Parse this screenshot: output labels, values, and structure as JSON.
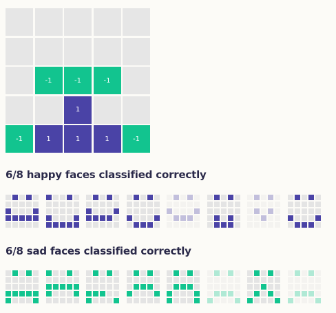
{
  "kernel": {
    "rows": [
      [
        "",
        "",
        "",
        "",
        ""
      ],
      [
        "",
        "",
        "",
        "",
        ""
      ],
      [
        "",
        "-1",
        "-1",
        "-1",
        ""
      ],
      [
        "",
        "",
        "1",
        "",
        ""
      ],
      [
        "-1",
        "1",
        "1",
        "1",
        "-1"
      ]
    ]
  },
  "happy": {
    "title": "6/8 happy faces classified correctly",
    "color": "#4a43a6",
    "faces": [
      {
        "correct": true,
        "grid": [
          [
            0,
            1,
            0,
            1,
            0
          ],
          [
            0,
            0,
            0,
            0,
            0
          ],
          [
            1,
            0,
            0,
            0,
            1
          ],
          [
            1,
            1,
            1,
            1,
            1
          ],
          [
            0,
            0,
            0,
            0,
            0
          ]
        ]
      },
      {
        "correct": true,
        "grid": [
          [
            1,
            0,
            0,
            1,
            0
          ],
          [
            0,
            0,
            0,
            0,
            0
          ],
          [
            0,
            0,
            0,
            0,
            0
          ],
          [
            1,
            0,
            0,
            0,
            1
          ],
          [
            1,
            1,
            1,
            1,
            1
          ]
        ]
      },
      {
        "correct": true,
        "grid": [
          [
            0,
            1,
            0,
            1,
            0
          ],
          [
            0,
            0,
            0,
            0,
            0
          ],
          [
            1,
            0,
            0,
            0,
            1
          ],
          [
            1,
            1,
            1,
            1,
            0
          ],
          [
            0,
            0,
            0,
            0,
            0
          ]
        ]
      },
      {
        "correct": true,
        "grid": [
          [
            0,
            1,
            0,
            1,
            0
          ],
          [
            0,
            0,
            0,
            0,
            0
          ],
          [
            0,
            0,
            0,
            0,
            0
          ],
          [
            1,
            0,
            0,
            0,
            1
          ],
          [
            0,
            1,
            1,
            1,
            0
          ]
        ]
      },
      {
        "correct": false,
        "grid": [
          [
            0,
            1,
            0,
            1,
            0
          ],
          [
            0,
            0,
            0,
            0,
            0
          ],
          [
            1,
            0,
            0,
            0,
            1
          ],
          [
            0,
            1,
            1,
            1,
            0
          ],
          [
            0,
            0,
            0,
            0,
            0
          ]
        ]
      },
      {
        "correct": true,
        "grid": [
          [
            0,
            1,
            0,
            1,
            0
          ],
          [
            0,
            0,
            0,
            0,
            0
          ],
          [
            0,
            0,
            0,
            0,
            0
          ],
          [
            0,
            1,
            0,
            1,
            0
          ],
          [
            0,
            1,
            1,
            1,
            0
          ]
        ]
      },
      {
        "correct": false,
        "grid": [
          [
            0,
            1,
            0,
            1,
            0
          ],
          [
            0,
            0,
            0,
            0,
            0
          ],
          [
            0,
            1,
            0,
            1,
            0
          ],
          [
            0,
            0,
            1,
            0,
            0
          ],
          [
            0,
            0,
            0,
            0,
            0
          ]
        ]
      },
      {
        "correct": true,
        "grid": [
          [
            0,
            1,
            0,
            1,
            0
          ],
          [
            0,
            0,
            0,
            0,
            0
          ],
          [
            0,
            0,
            0,
            0,
            0
          ],
          [
            1,
            0,
            0,
            0,
            1
          ],
          [
            0,
            1,
            1,
            1,
            0
          ]
        ]
      }
    ]
  },
  "sad": {
    "title": "6/8 sad faces classified correctly",
    "color": "#12c48f",
    "faces": [
      {
        "correct": true,
        "grid": [
          [
            0,
            1,
            0,
            1,
            0
          ],
          [
            0,
            0,
            0,
            0,
            0
          ],
          [
            0,
            0,
            0,
            0,
            0
          ],
          [
            1,
            1,
            1,
            1,
            1
          ],
          [
            1,
            0,
            0,
            0,
            1
          ]
        ]
      },
      {
        "correct": true,
        "grid": [
          [
            1,
            0,
            0,
            1,
            0
          ],
          [
            0,
            0,
            0,
            0,
            0
          ],
          [
            1,
            1,
            1,
            1,
            1
          ],
          [
            1,
            0,
            0,
            0,
            1
          ],
          [
            0,
            0,
            0,
            0,
            0
          ]
        ]
      },
      {
        "correct": true,
        "grid": [
          [
            0,
            1,
            0,
            1,
            0
          ],
          [
            0,
            0,
            0,
            0,
            0
          ],
          [
            0,
            0,
            0,
            0,
            0
          ],
          [
            1,
            1,
            1,
            0,
            0
          ],
          [
            1,
            0,
            0,
            0,
            1
          ]
        ]
      },
      {
        "correct": true,
        "grid": [
          [
            0,
            1,
            0,
            1,
            0
          ],
          [
            0,
            0,
            0,
            0,
            0
          ],
          [
            0,
            1,
            1,
            1,
            0
          ],
          [
            1,
            0,
            0,
            0,
            1
          ],
          [
            0,
            0,
            0,
            0,
            0
          ]
        ]
      },
      {
        "correct": true,
        "grid": [
          [
            0,
            1,
            0,
            1,
            0
          ],
          [
            0,
            0,
            0,
            0,
            0
          ],
          [
            0,
            1,
            1,
            1,
            0
          ],
          [
            1,
            0,
            0,
            0,
            1
          ],
          [
            1,
            0,
            0,
            0,
            1
          ]
        ]
      },
      {
        "correct": false,
        "grid": [
          [
            0,
            1,
            0,
            1,
            0
          ],
          [
            0,
            0,
            0,
            0,
            0
          ],
          [
            0,
            0,
            0,
            0,
            0
          ],
          [
            0,
            1,
            1,
            1,
            0
          ],
          [
            1,
            0,
            0,
            0,
            1
          ]
        ]
      },
      {
        "correct": true,
        "grid": [
          [
            0,
            1,
            0,
            1,
            0
          ],
          [
            0,
            0,
            0,
            0,
            0
          ],
          [
            0,
            0,
            1,
            0,
            0
          ],
          [
            0,
            1,
            0,
            1,
            0
          ],
          [
            1,
            0,
            0,
            0,
            1
          ]
        ]
      },
      {
        "correct": false,
        "grid": [
          [
            0,
            1,
            0,
            1,
            0
          ],
          [
            0,
            0,
            0,
            0,
            0
          ],
          [
            0,
            0,
            0,
            0,
            0
          ],
          [
            0,
            1,
            1,
            1,
            0
          ],
          [
            1,
            0,
            0,
            0,
            1
          ]
        ]
      }
    ]
  }
}
